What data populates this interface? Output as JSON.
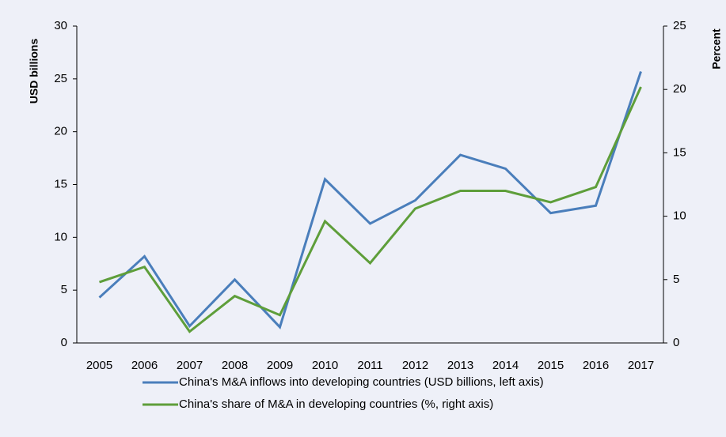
{
  "chart_data": {
    "type": "line",
    "y_label": "USD billions",
    "y2_label": "Percent",
    "categories": [
      "2005",
      "2006",
      "2007",
      "2008",
      "2009",
      "2010",
      "2011",
      "2012",
      "2013",
      "2014",
      "2015",
      "2016",
      "2017"
    ],
    "series": [
      {
        "name": "China's M&A inflows into developing countries (USD billions, left axis)",
        "color": "#4a7ebb",
        "values": [
          4.3,
          8.2,
          1.6,
          6.0,
          1.5,
          15.5,
          11.3,
          13.5,
          17.8,
          16.5,
          12.3,
          13.0,
          25.7
        ]
      },
      {
        "name": "China's share of M&A in developing countries (%, right axis)",
        "color": "#5e9e3a",
        "axis": "y2",
        "values": [
          4.8,
          6.0,
          0.9,
          3.7,
          2.2,
          9.6,
          6.3,
          10.6,
          12.0,
          12.0,
          11.1,
          12.3,
          20.2
        ]
      }
    ],
    "ylim": [
      0,
      30
    ],
    "yticks": [
      0,
      5,
      10,
      15,
      20,
      25,
      30
    ],
    "y2lim": [
      0,
      25
    ],
    "y2ticks": [
      0,
      5,
      10,
      15,
      20,
      25
    ],
    "grid": false
  }
}
